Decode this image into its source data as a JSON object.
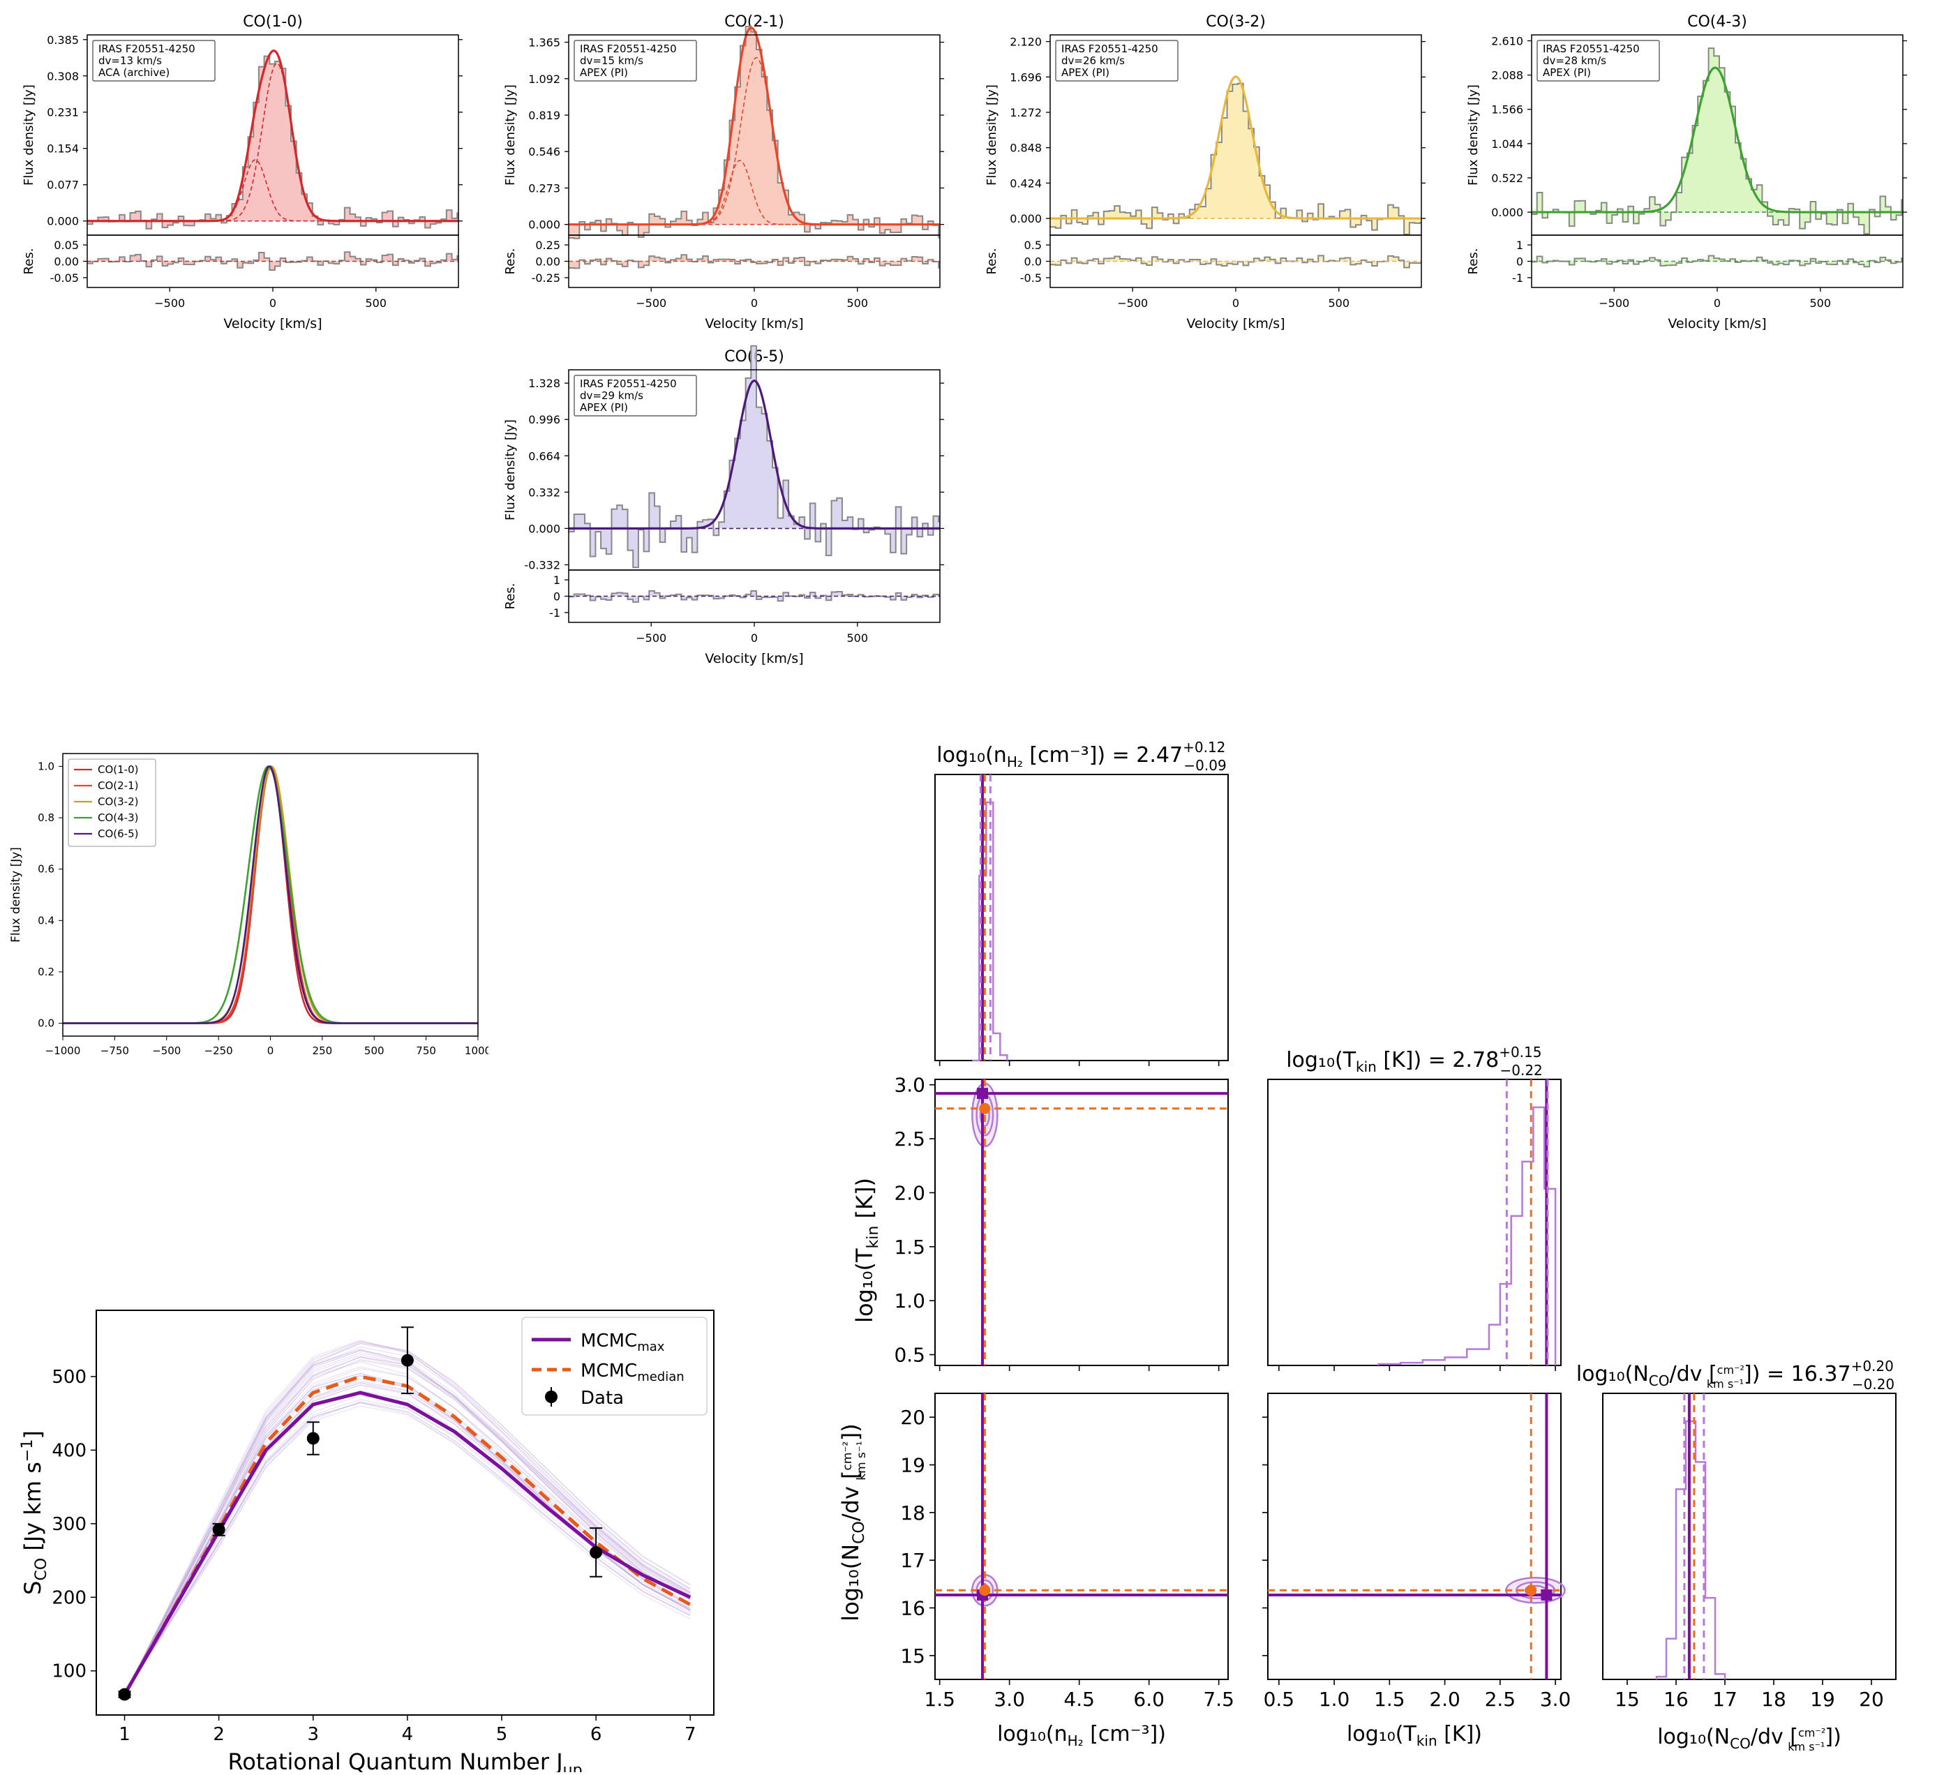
{
  "spectra": {
    "source": "IRAS F20551-4250",
    "xlabel": "Velocity [km/s]",
    "ylabel": "Flux density [Jy]",
    "res_label": "Res.",
    "xticks": [
      -500,
      0,
      500
    ],
    "panels": [
      {
        "title": "CO(1-0)",
        "dv": "dv=13 km/s",
        "obs": "ACA (archive)",
        "color": "#d62728",
        "fill": "#f6b8b8",
        "yticks": [
          "0.000",
          "0.077",
          "0.154",
          "0.231",
          "0.308",
          "0.385"
        ],
        "res_ticks": [
          "0.05",
          "0.00",
          "-0.05"
        ]
      },
      {
        "title": "CO(2-1)",
        "dv": "dv=15 km/s",
        "obs": "APEX (PI)",
        "color": "#e8452a",
        "fill": "#f9c3b4",
        "yticks": [
          "0.000",
          "0.273",
          "0.546",
          "0.819",
          "1.092",
          "1.365"
        ],
        "res_ticks": [
          "0.25",
          "0.00",
          "-0.25"
        ]
      },
      {
        "title": "CO(3-2)",
        "dv": "dv=26 km/s",
        "obs": "APEX (PI)",
        "color": "#e8b83a",
        "fill": "#fbe9a8",
        "yticks": [
          "0.000",
          "0.424",
          "0.848",
          "1.272",
          "1.696",
          "2.120"
        ],
        "res_ticks": [
          "0.5",
          "0.0",
          "-0.5"
        ]
      },
      {
        "title": "CO(4-3)",
        "dv": "dv=28 km/s",
        "obs": "APEX (PI)",
        "color": "#3ca230",
        "fill": "#d6f5b8",
        "yticks": [
          "0.000",
          "0.522",
          "1.044",
          "1.566",
          "2.088",
          "2.610"
        ],
        "res_ticks": [
          "1",
          "0",
          "-1"
        ]
      },
      {
        "title": "CO(6-5)",
        "dv": "dv=29 km/s",
        "obs": "APEX (PI)",
        "color": "#4b1a7a",
        "fill": "#d6d0ee",
        "yticks": [
          "-0.332",
          "0.000",
          "0.332",
          "0.664",
          "0.996",
          "1.328"
        ],
        "res_ticks": [
          "1",
          "0",
          "-1"
        ]
      }
    ]
  },
  "normalized": {
    "xlabel": "Velocity [km/s]",
    "ylabel": "Flux density [Jy]",
    "xticks": [
      "-1000",
      "-750",
      "-500",
      "-250",
      "0",
      "250",
      "500",
      "750",
      "1000"
    ],
    "yticks": [
      "0.0",
      "0.2",
      "0.4",
      "0.6",
      "0.8",
      "1.0"
    ],
    "legend": [
      {
        "label": "CO(1-0)",
        "color": "#d62728"
      },
      {
        "label": "CO(2-1)",
        "color": "#e8452a"
      },
      {
        "label": "CO(3-2)",
        "color": "#c8a020"
      },
      {
        "label": "CO(4-3)",
        "color": "#3ca230"
      },
      {
        "label": "CO(6-5)",
        "color": "#4b1a7a"
      }
    ]
  },
  "sled": {
    "xlabel": "Rotational Quantum Number J",
    "xlabel_sub": "up",
    "ylabel": "S",
    "ylabel_sub": "CO",
    "ylabel_unit": " [Jy km s",
    "ylabel_sup": "−1",
    "ylabel_end": "]",
    "legend_max": "MCMC",
    "legend_max_sub": "max",
    "legend_median": "MCMC",
    "legend_median_sub": "median",
    "legend_data": "Data",
    "xticks": [
      "1",
      "2",
      "3",
      "4",
      "5",
      "6",
      "7"
    ],
    "yticks": [
      "100",
      "200",
      "300",
      "400",
      "500"
    ],
    "color_max": "#7b0f9e",
    "color_median": "#e8591a"
  },
  "corner": {
    "color_purple": "#7b0f9e",
    "color_light": "#b57ad6",
    "color_orange": "#ef6c1a",
    "title_n": "log₁₀(n",
    "title_n_sub": "H₂",
    "title_n_rest": " [cm⁻³]) = 2.47",
    "title_n_up": "+0.12",
    "title_n_lo": "−0.09",
    "title_t": "log₁₀(T",
    "title_t_sub": "kin",
    "title_t_rest": " [K]) = 2.78",
    "title_t_up": "+0.15",
    "title_t_lo": "−0.22",
    "title_c": "log₁₀(N",
    "title_c_sub": "CO",
    "title_c_mid": "/dv [",
    "title_c_num": "cm⁻²",
    "title_c_den": "km s⁻¹",
    "title_c_rest": "]) = 16.37",
    "title_c_up": "+0.20",
    "title_c_lo": "−0.20",
    "xlabel_n": "log₁₀(n",
    "xlabel_n_sub": "H₂",
    "xlabel_n_rest": " [cm⁻³])",
    "xlabel_t": "log₁₀(T",
    "xlabel_t_sub": "kin",
    "xlabel_t_rest": " [K])",
    "xlabel_c": "log₁₀(N",
    "xlabel_c_sub": "CO",
    "xlabel_c_rest": "/dv [",
    "xlabel_c_end": "])",
    "xticks_n": [
      "1.5",
      "3.0",
      "4.5",
      "6.0",
      "7.5"
    ],
    "xticks_t": [
      "0.5",
      "1.0",
      "1.5",
      "2.0",
      "2.5",
      "3.0"
    ],
    "xticks_c": [
      "15",
      "16",
      "17",
      "18",
      "19",
      "20"
    ],
    "yticks_t": [
      "0.5",
      "1.0",
      "1.5",
      "2.0",
      "2.5",
      "3.0"
    ],
    "yticks_c": [
      "15",
      "16",
      "17",
      "18",
      "19",
      "20"
    ]
  },
  "chart_data": [
    {
      "type": "line",
      "title": "CO(1-0)",
      "xlabel": "Velocity [km/s]",
      "ylabel": "Flux density [Jy]",
      "xlim": [
        -900,
        900
      ],
      "ylim": [
        -0.03,
        0.395
      ],
      "gauss_components": [
        {
          "amp": 0.335,
          "center": 20,
          "sigma": 70
        },
        {
          "amp": 0.13,
          "center": -85,
          "sigma": 55
        }
      ],
      "total_peak": 0.345
    },
    {
      "type": "line",
      "title": "CO(2-1)",
      "xlabel": "Velocity [km/s]",
      "ylabel": "Flux density [Jy]",
      "xlim": [
        -900,
        900
      ],
      "ylim": [
        -0.08,
        1.42
      ],
      "gauss_components": [
        {
          "amp": 1.25,
          "center": 10,
          "sigma": 75
        },
        {
          "amp": 0.48,
          "center": -70,
          "sigma": 55
        }
      ],
      "total_peak": 1.35
    },
    {
      "type": "line",
      "title": "CO(3-2)",
      "xlabel": "Velocity [km/s]",
      "ylabel": "Flux density [Jy]",
      "xlim": [
        -900,
        900
      ],
      "ylim": [
        -0.2,
        2.2
      ],
      "gauss_components": [
        {
          "amp": 1.7,
          "center": 0,
          "sigma": 80
        }
      ],
      "total_peak": 1.7
    },
    {
      "type": "line",
      "title": "CO(4-3)",
      "xlabel": "Velocity [km/s]",
      "ylabel": "Flux density [Jy]",
      "xlim": [
        -900,
        900
      ],
      "ylim": [
        -0.35,
        2.7
      ],
      "gauss_components": [
        {
          "amp": 2.2,
          "center": -10,
          "sigma": 95
        }
      ],
      "total_peak": 2.2
    },
    {
      "type": "line",
      "title": "CO(6-5)",
      "xlabel": "Velocity [km/s]",
      "ylabel": "Flux density [Jy]",
      "xlim": [
        -900,
        900
      ],
      "ylim": [
        -0.38,
        1.45
      ],
      "gauss_components": [
        {
          "amp": 1.35,
          "center": 0,
          "sigma": 80
        }
      ],
      "total_peak": 1.35
    },
    {
      "type": "line",
      "xlabel": "Velocity [km/s]",
      "ylabel": "Flux density [Jy]",
      "xlim": [
        -1000,
        1000
      ],
      "ylim": [
        -0.05,
        1.05
      ],
      "series": [
        {
          "name": "CO(1-0)",
          "center": 0,
          "sigma": 72
        },
        {
          "name": "CO(2-1)",
          "center": 5,
          "sigma": 78
        },
        {
          "name": "CO(3-2)",
          "center": 5,
          "sigma": 85
        },
        {
          "name": "CO(4-3)",
          "center": -10,
          "sigma": 95
        },
        {
          "name": "CO(6-5)",
          "center": -5,
          "sigma": 80
        }
      ]
    },
    {
      "type": "scatter",
      "xlabel": "Rotational Quantum Number Jup",
      "ylabel": "SCO [Jy km s−1]",
      "xlim": [
        0.7,
        7.25
      ],
      "ylim": [
        40,
        590
      ],
      "data": {
        "x": [
          1,
          2,
          3,
          4,
          6
        ],
        "y": [
          68,
          292,
          416,
          522,
          261
        ],
        "err": [
          4,
          8,
          22,
          45,
          33
        ]
      },
      "series": [
        {
          "name": "MCMCmax",
          "x": [
            1,
            2,
            2.5,
            3,
            3.5,
            4,
            4.5,
            5,
            5.5,
            6,
            6.5,
            7
          ],
          "y": [
            68,
            290,
            400,
            462,
            478,
            462,
            425,
            375,
            320,
            268,
            230,
            200
          ]
        },
        {
          "name": "MCMCmedian",
          "x": [
            1,
            2,
            2.5,
            3,
            3.5,
            4,
            4.5,
            5,
            5.5,
            6,
            6.5,
            7
          ],
          "y": [
            68,
            293,
            410,
            478,
            500,
            487,
            445,
            390,
            332,
            275,
            225,
            190
          ]
        }
      ]
    },
    {
      "type": "scatter",
      "parameters": [
        "log10(nH2 [cm−3])",
        "log10(Tkin [K])",
        "log10(NCO/dv [cm−2/km s−1])"
      ],
      "ranges": [
        [
          1.4,
          7.7
        ],
        [
          0.4,
          3.05
        ],
        [
          14.5,
          20.5
        ]
      ],
      "max_posterior": [
        2.42,
        2.92,
        16.27
      ],
      "median": [
        2.47,
        2.78,
        16.37
      ],
      "hist_n": {
        "bins": [
          2.2,
          2.35,
          2.5,
          2.65,
          2.8,
          2.95
        ],
        "counts": [
          0,
          0.68,
          0.95,
          0.1,
          0.02
        ]
      },
      "hist_t": {
        "bins": [
          1.4,
          1.6,
          1.8,
          2.0,
          2.2,
          2.4,
          2.5,
          2.6,
          2.7,
          2.8,
          2.9,
          3.0
        ],
        "counts": [
          0.005,
          0.01,
          0.02,
          0.03,
          0.06,
          0.15,
          0.3,
          0.55,
          0.75,
          0.95,
          0.65
        ]
      },
      "hist_c": {
        "bins": [
          15.6,
          15.8,
          16.0,
          16.2,
          16.4,
          16.6,
          16.8,
          17.0
        ],
        "counts": [
          0.01,
          0.15,
          0.7,
          0.95,
          0.8,
          0.3,
          0.02
        ]
      }
    }
  ]
}
